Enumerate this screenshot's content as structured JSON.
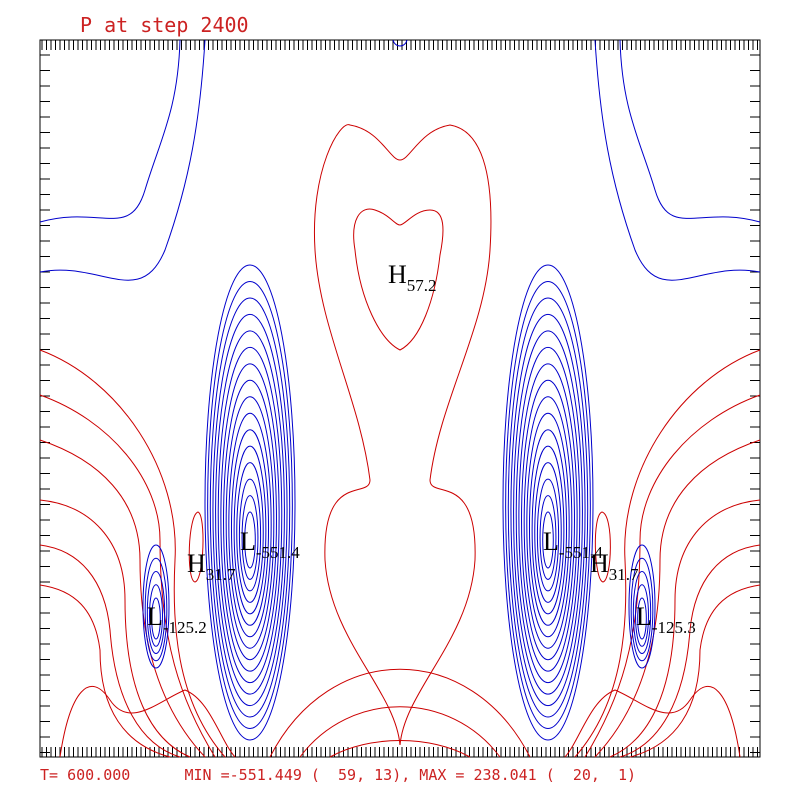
{
  "chart_data": {
    "type": "contour",
    "title": "P at step 2400",
    "footer": "T= 600.000      MIN =-551.449 (  59, 13), MAX = 238.041 (  20,  1)",
    "extrema": [
      {
        "kind": "H",
        "value": 57.2
      },
      {
        "kind": "L",
        "value": -551.4
      },
      {
        "kind": "H",
        "value": 31.7
      },
      {
        "kind": "L",
        "value": -125.2
      },
      {
        "kind": "L",
        "value": -551.4
      },
      {
        "kind": "H",
        "value": 31.7
      },
      {
        "kind": "L",
        "value": -125.3
      }
    ],
    "colors": {
      "negative": "#0000cc",
      "positive": "#cc0000",
      "text": "#cc2222"
    }
  }
}
